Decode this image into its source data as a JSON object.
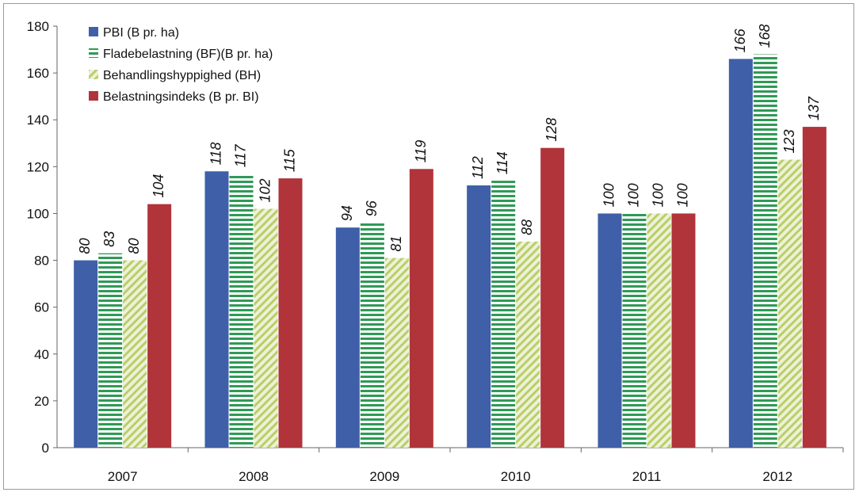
{
  "chart_data": {
    "type": "bar",
    "categories": [
      "2007",
      "2008",
      "2009",
      "2010",
      "2011",
      "2012"
    ],
    "series": [
      {
        "name": "PBI (B pr. ha)",
        "values": [
          80,
          118,
          94,
          112,
          100,
          166
        ],
        "color": "#3f5fa8",
        "pattern": "solid"
      },
      {
        "name": "Fladebelastning (BF)(B pr. ha)",
        "values": [
          83,
          117,
          96,
          114,
          100,
          168
        ],
        "color": "#2e9a55",
        "pattern": "horizontal-stripes"
      },
      {
        "name": "Behandlingshyppighed (BH)",
        "values": [
          80,
          102,
          81,
          88,
          100,
          123
        ],
        "color": "#a8c85a",
        "pattern": "diagonal-stripes"
      },
      {
        "name": "Belastningsindeks (B pr. BI)",
        "values": [
          104,
          115,
          119,
          128,
          100,
          137
        ],
        "color": "#b0343a",
        "pattern": "solid"
      }
    ],
    "ylim": [
      0,
      180
    ],
    "yticks": [
      "0",
      "20",
      "40",
      "60",
      "80",
      "100",
      "120",
      "140",
      "160",
      "180"
    ],
    "grid": false,
    "legend_position": "top-left",
    "title": "",
    "xlabel": "",
    "ylabel": ""
  }
}
